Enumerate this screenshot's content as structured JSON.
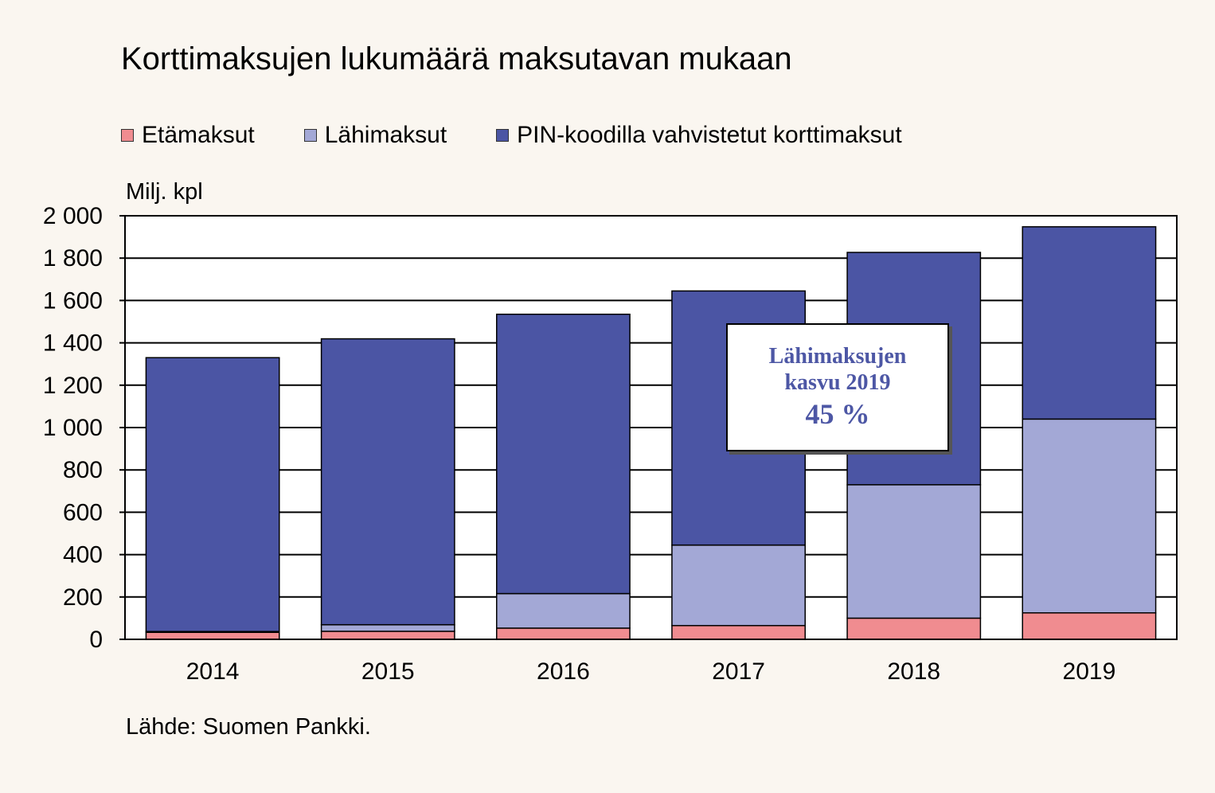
{
  "chart_data": {
    "type": "bar",
    "stacked": true,
    "title": "Korttimaksujen lukumäärä maksutavan mukaan",
    "ylabel": "Milj. kpl",
    "ylim": [
      0,
      2000
    ],
    "yticks": [
      0,
      200,
      400,
      600,
      800,
      1000,
      1200,
      1400,
      1600,
      1800,
      2000
    ],
    "ytick_labels": [
      "0",
      "200",
      "400",
      "600",
      "800",
      "1 000",
      "1 200",
      "1 400",
      "1 600",
      "1 800",
      "2 000"
    ],
    "grid": true,
    "legend_position": "top",
    "categories": [
      "2014",
      "2015",
      "2016",
      "2017",
      "2018",
      "2019"
    ],
    "series": [
      {
        "name": "Etämaksut",
        "color": "#f08c90",
        "values": [
          33,
          38,
          53,
          65,
          100,
          125
        ]
      },
      {
        "name": "Lähimaksut",
        "color": "#a3a8d6",
        "values": [
          4,
          31,
          163,
          380,
          630,
          915
        ]
      },
      {
        "name": "PIN-koodilla vahvistetut korttimaksut",
        "color": "#4b55a4",
        "values": [
          1293,
          1350,
          1319,
          1200,
          1097,
          908
        ]
      }
    ],
    "annotation": {
      "line1": "Lähimaksujen",
      "line2": "kasvu 2019",
      "value": "45 %"
    },
    "source": "Lähde: Suomen Pankki."
  }
}
